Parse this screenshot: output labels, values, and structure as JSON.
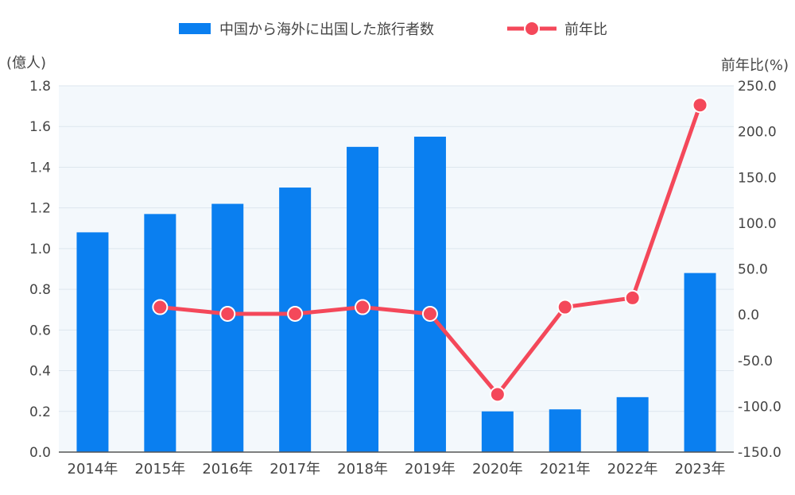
{
  "chart_data": {
    "type": "bar",
    "categories": [
      "2014年",
      "2015年",
      "2016年",
      "2017年",
      "2018年",
      "2019年",
      "2020年",
      "2021年",
      "2022年",
      "2023年"
    ],
    "series": [
      {
        "name": "中国から海外に出国した旅行者数",
        "type": "bar",
        "axis": "left",
        "color": "#0a7ff0",
        "values": [
          1.08,
          1.17,
          1.22,
          1.3,
          1.5,
          1.55,
          0.2,
          0.21,
          0.27,
          0.88
        ]
      },
      {
        "name": "前年比",
        "type": "line",
        "axis": "right",
        "color": "#f4485a",
        "values": [
          null,
          8.3,
          1.0,
          1.0,
          8.3,
          1.0,
          -87.0,
          8.3,
          18.4,
          229.0
        ]
      }
    ],
    "ylabel": "(億人)",
    "ylim": [
      0,
      1.8
    ],
    "yticks": [
      "0.0",
      "0.2",
      "0.4",
      "0.6",
      "0.8",
      "1.0",
      "1.2",
      "1.4",
      "1.6",
      "1.8"
    ],
    "y2label": "前年比(%)",
    "y2lim": [
      -150,
      250
    ],
    "y2ticks": [
      "-150.0",
      "-100.0",
      "-50.0",
      "0.0",
      "50.0",
      "100.0",
      "150.0",
      "200.0",
      "250.0"
    ],
    "grid": true,
    "legend_position": "top-center",
    "plot_background": "#f3f8fc"
  }
}
